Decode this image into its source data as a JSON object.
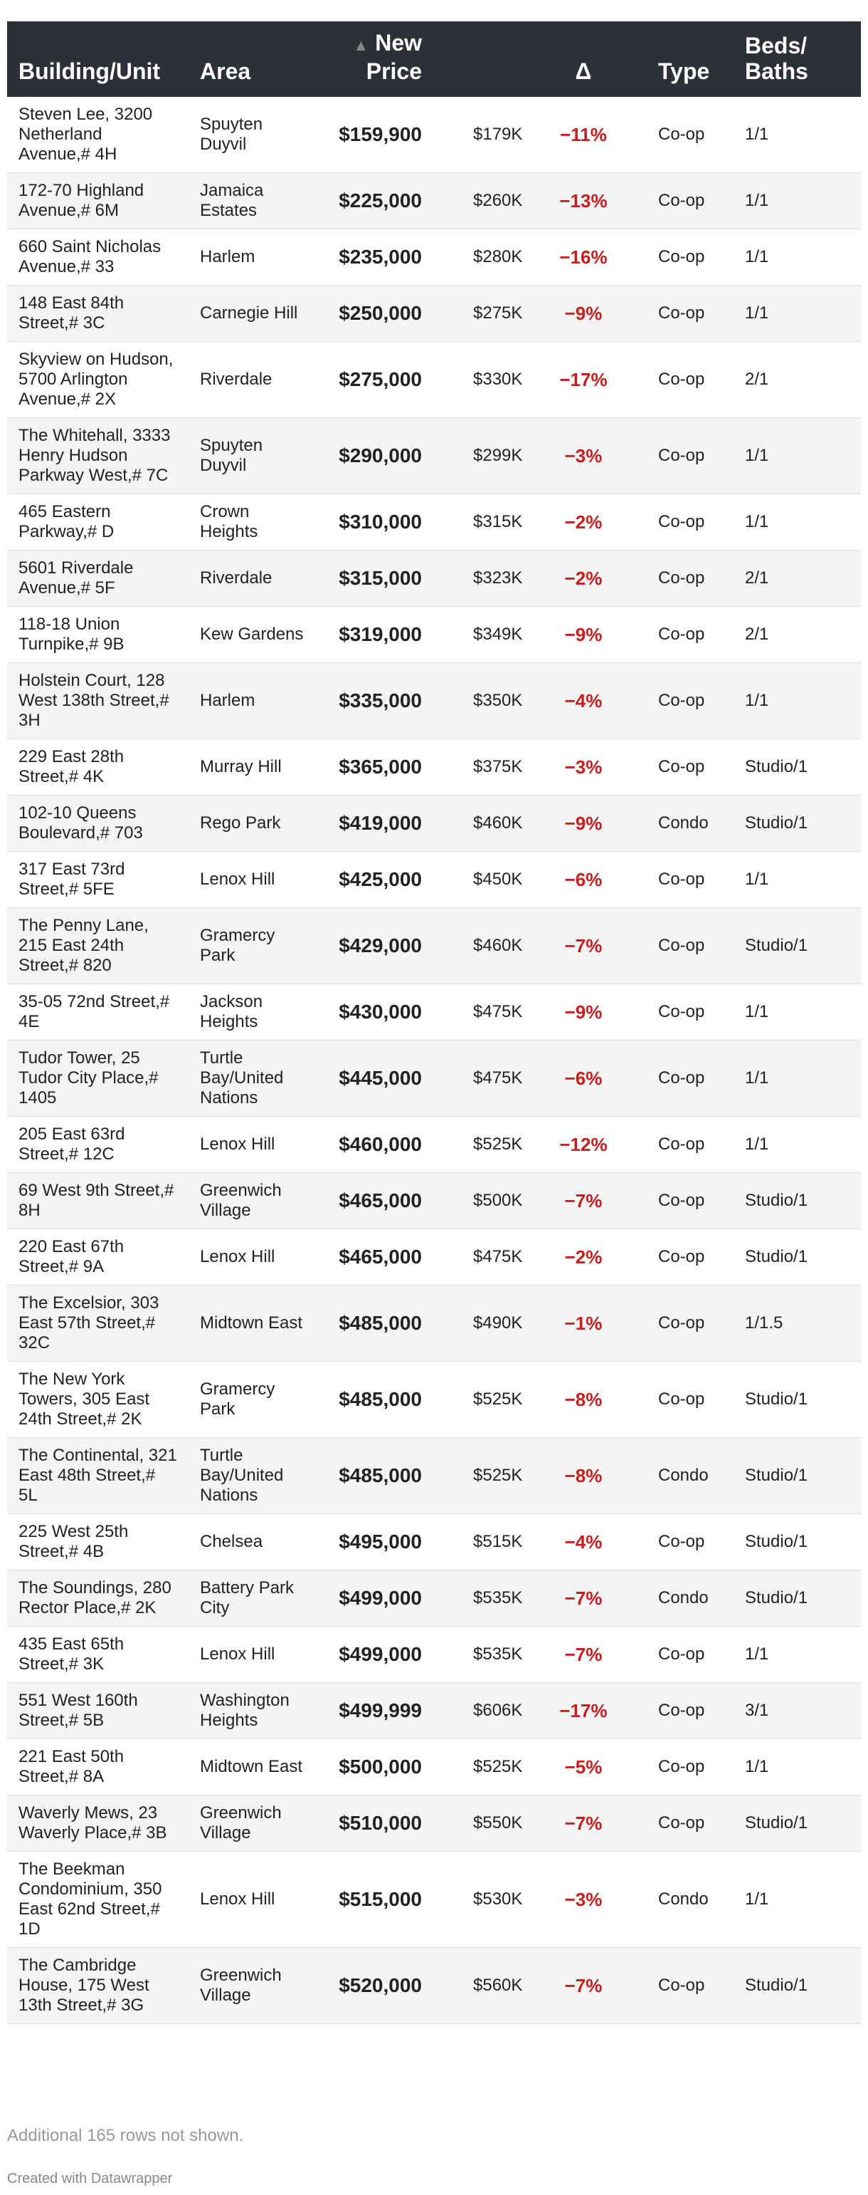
{
  "header": {
    "building": "Building/Unit",
    "area": "Area",
    "sort_indicator": "▲",
    "new_price": "New Price",
    "delta": "Δ",
    "type": "Type",
    "beds_baths": "Beds/ Baths"
  },
  "rows": [
    [
      "Steven Lee, 3200 Netherland Avenue,# 4H",
      "Spuyten Duyvil",
      "$159,900",
      "$179K",
      "−11%",
      "Co-op",
      "1/1"
    ],
    [
      "172-70 Highland Avenue,# 6M",
      "Jamaica Estates",
      "$225,000",
      "$260K",
      "−13%",
      "Co-op",
      "1/1"
    ],
    [
      "660 Saint Nicholas Avenue,# 33",
      "Harlem",
      "$235,000",
      "$280K",
      "−16%",
      "Co-op",
      "1/1"
    ],
    [
      "148 East 84th Street,# 3C",
      "Carnegie Hill",
      "$250,000",
      "$275K",
      "−9%",
      "Co-op",
      "1/1"
    ],
    [
      "Skyview on Hudson, 5700 Arlington Avenue,# 2X",
      "Riverdale",
      "$275,000",
      "$330K",
      "−17%",
      "Co-op",
      "2/1"
    ],
    [
      "The Whitehall, 3333 Henry Hudson Parkway West,# 7C",
      "Spuyten Duyvil",
      "$290,000",
      "$299K",
      "−3%",
      "Co-op",
      "1/1"
    ],
    [
      "465 Eastern Parkway,# D",
      "Crown Heights",
      "$310,000",
      "$315K",
      "−2%",
      "Co-op",
      "1/1"
    ],
    [
      "5601 Riverdale Avenue,# 5F",
      "Riverdale",
      "$315,000",
      "$323K",
      "−2%",
      "Co-op",
      "2/1"
    ],
    [
      "118-18 Union Turnpike,# 9B",
      "Kew Gardens",
      "$319,000",
      "$349K",
      "−9%",
      "Co-op",
      "2/1"
    ],
    [
      "Holstein Court, 128 West 138th Street,# 3H",
      "Harlem",
      "$335,000",
      "$350K",
      "−4%",
      "Co-op",
      "1/1"
    ],
    [
      "229 East 28th Street,# 4K",
      "Murray Hill",
      "$365,000",
      "$375K",
      "−3%",
      "Co-op",
      "Studio/1"
    ],
    [
      "102-10 Queens Boulevard,# 703",
      "Rego Park",
      "$419,000",
      "$460K",
      "−9%",
      "Condo",
      "Studio/1"
    ],
    [
      "317 East 73rd Street,# 5FE",
      "Lenox Hill",
      "$425,000",
      "$450K",
      "−6%",
      "Co-op",
      "1/1"
    ],
    [
      "The Penny Lane, 215 East 24th Street,# 820",
      "Gramercy Park",
      "$429,000",
      "$460K",
      "−7%",
      "Co-op",
      "Studio/1"
    ],
    [
      "35-05 72nd Street,# 4E",
      "Jackson Heights",
      "$430,000",
      "$475K",
      "−9%",
      "Co-op",
      "1/1"
    ],
    [
      "Tudor Tower, 25 Tudor City Place,# 1405",
      "Turtle Bay/United Nations",
      "$445,000",
      "$475K",
      "−6%",
      "Co-op",
      "1/1"
    ],
    [
      "205 East 63rd Street,# 12C",
      "Lenox Hill",
      "$460,000",
      "$525K",
      "−12%",
      "Co-op",
      "1/1"
    ],
    [
      "69 West 9th Street,# 8H",
      "Greenwich Village",
      "$465,000",
      "$500K",
      "−7%",
      "Co-op",
      "Studio/1"
    ],
    [
      "220 East 67th Street,# 9A",
      "Lenox Hill",
      "$465,000",
      "$475K",
      "−2%",
      "Co-op",
      "Studio/1"
    ],
    [
      "The Excelsior, 303 East 57th Street,# 32C",
      "Midtown East",
      "$485,000",
      "$490K",
      "−1%",
      "Co-op",
      "1/1.5"
    ],
    [
      "The New York Towers, 305 East 24th Street,# 2K",
      "Gramercy Park",
      "$485,000",
      "$525K",
      "−8%",
      "Co-op",
      "Studio/1"
    ],
    [
      "The Continental, 321 East 48th Street,# 5L",
      "Turtle Bay/United Nations",
      "$485,000",
      "$525K",
      "−8%",
      "Condo",
      "Studio/1"
    ],
    [
      "225 West 25th Street,# 4B",
      "Chelsea",
      "$495,000",
      "$515K",
      "−4%",
      "Co-op",
      "Studio/1"
    ],
    [
      "The Soundings, 280 Rector Place,# 2K",
      "Battery Park City",
      "$499,000",
      "$535K",
      "−7%",
      "Condo",
      "Studio/1"
    ],
    [
      "435 East 65th Street,# 3K",
      "Lenox Hill",
      "$499,000",
      "$535K",
      "−7%",
      "Co-op",
      "1/1"
    ],
    [
      "551 West 160th Street,# 5B",
      "Washington Heights",
      "$499,999",
      "$606K",
      "−17%",
      "Co-op",
      "3/1"
    ],
    [
      "221 East 50th Street,# 8A",
      "Midtown East",
      "$500,000",
      "$525K",
      "−5%",
      "Co-op",
      "1/1"
    ],
    [
      "Waverly Mews, 23 Waverly Place,# 3B",
      "Greenwich Village",
      "$510,000",
      "$550K",
      "−7%",
      "Co-op",
      "Studio/1"
    ],
    [
      "The Beekman Condominium, 350 East 62nd Street,# 1D",
      "Lenox Hill",
      "$515,000",
      "$530K",
      "−3%",
      "Condo",
      "1/1"
    ],
    [
      "The Cambridge House, 175 West 13th Street,# 3G",
      "Greenwich Village",
      "$520,000",
      "$560K",
      "−7%",
      "Co-op",
      "Studio/1"
    ]
  ],
  "footer": {
    "note": "Additional 165 rows not shown.",
    "credit": "Created with Datawrapper"
  }
}
